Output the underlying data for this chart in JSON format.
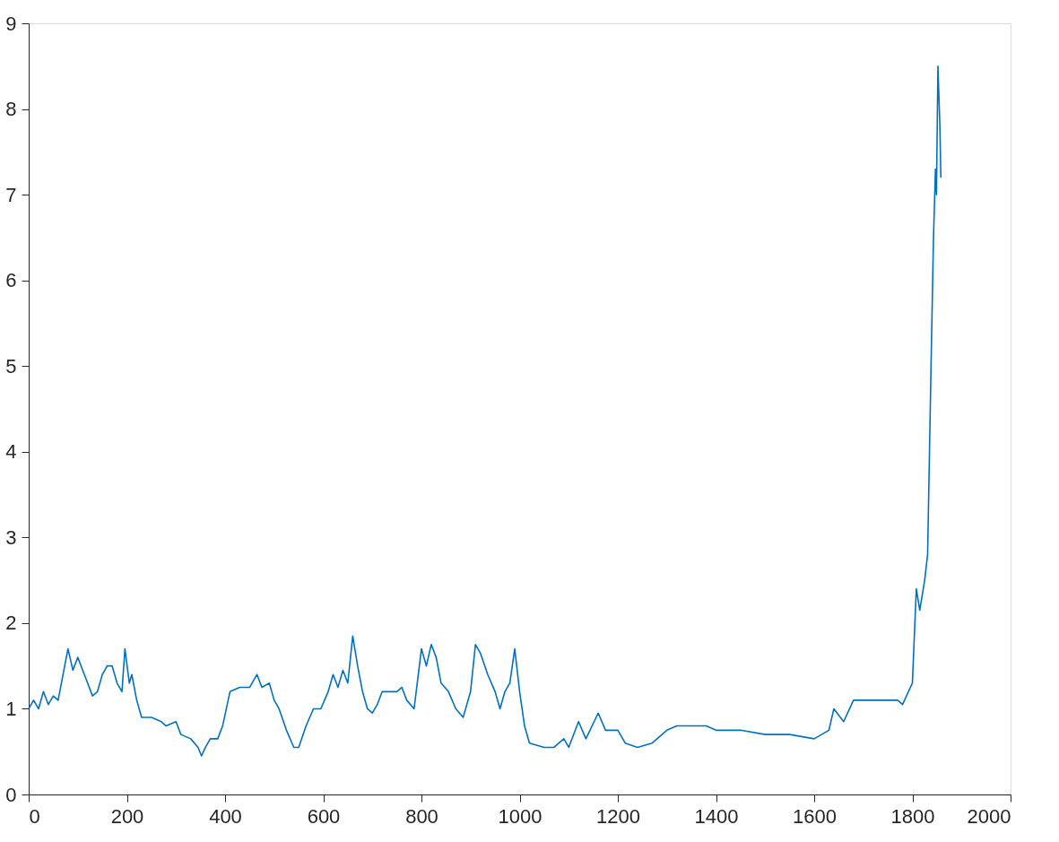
{
  "chart_data": {
    "type": "line",
    "xlim": [
      0,
      2000
    ],
    "ylim": [
      0,
      9
    ],
    "xticks": [
      0,
      200,
      400,
      600,
      800,
      1000,
      1200,
      1400,
      1600,
      1800,
      2000
    ],
    "yticks": [
      0,
      1,
      2,
      3,
      4,
      5,
      6,
      7,
      8,
      9
    ],
    "grid": false,
    "marker": "none",
    "line_style": "solid",
    "x": [
      0,
      10,
      20,
      30,
      40,
      50,
      60,
      70,
      80,
      90,
      100,
      110,
      120,
      130,
      140,
      150,
      160,
      170,
      180,
      190,
      196,
      205,
      210,
      220,
      230,
      250,
      270,
      280,
      300,
      310,
      330,
      345,
      352,
      360,
      370,
      385,
      395,
      410,
      430,
      450,
      465,
      475,
      490,
      500,
      510,
      525,
      540,
      550,
      565,
      580,
      595,
      610,
      620,
      630,
      640,
      650,
      660,
      670,
      680,
      690,
      700,
      710,
      720,
      730,
      750,
      760,
      770,
      785,
      800,
      810,
      820,
      830,
      840,
      855,
      870,
      885,
      900,
      910,
      920,
      935,
      950,
      960,
      970,
      980,
      990,
      1000,
      1010,
      1020,
      1050,
      1070,
      1090,
      1100,
      1120,
      1135,
      1160,
      1175,
      1200,
      1215,
      1240,
      1270,
      1300,
      1320,
      1380,
      1400,
      1450,
      1500,
      1550,
      1600,
      1630,
      1640,
      1660,
      1680,
      1700,
      1750,
      1770,
      1780,
      1800,
      1808,
      1815,
      1825,
      1831,
      1838,
      1843,
      1847,
      1849,
      1852,
      1856,
      1858
    ],
    "series": [
      {
        "color": "#0072bd",
        "values": [
          1.0,
          1.1,
          1.0,
          1.2,
          1.05,
          1.15,
          1.1,
          1.4,
          1.7,
          1.45,
          1.6,
          1.45,
          1.3,
          1.15,
          1.2,
          1.4,
          1.5,
          1.5,
          1.3,
          1.2,
          1.7,
          1.3,
          1.4,
          1.1,
          0.9,
          0.9,
          0.85,
          0.8,
          0.85,
          0.7,
          0.65,
          0.55,
          0.45,
          0.55,
          0.65,
          0.65,
          0.8,
          1.2,
          1.25,
          1.25,
          1.4,
          1.25,
          1.3,
          1.1,
          1.0,
          0.75,
          0.55,
          0.55,
          0.8,
          1.0,
          1.0,
          1.2,
          1.4,
          1.25,
          1.45,
          1.3,
          1.85,
          1.5,
          1.2,
          1.0,
          0.95,
          1.05,
          1.2,
          1.2,
          1.2,
          1.25,
          1.1,
          1.0,
          1.7,
          1.5,
          1.75,
          1.6,
          1.3,
          1.2,
          1.0,
          0.9,
          1.2,
          1.75,
          1.65,
          1.4,
          1.2,
          1.0,
          1.2,
          1.3,
          1.7,
          1.2,
          0.8,
          0.6,
          0.55,
          0.55,
          0.65,
          0.55,
          0.85,
          0.65,
          0.95,
          0.75,
          0.75,
          0.6,
          0.55,
          0.6,
          0.75,
          0.8,
          0.8,
          0.75,
          0.75,
          0.7,
          0.7,
          0.65,
          0.75,
          1.0,
          0.85,
          1.1,
          1.1,
          1.1,
          1.1,
          1.05,
          1.3,
          2.4,
          2.15,
          2.5,
          2.8,
          5.0,
          6.5,
          7.3,
          7.0,
          8.5,
          7.8,
          7.2
        ]
      }
    ]
  }
}
